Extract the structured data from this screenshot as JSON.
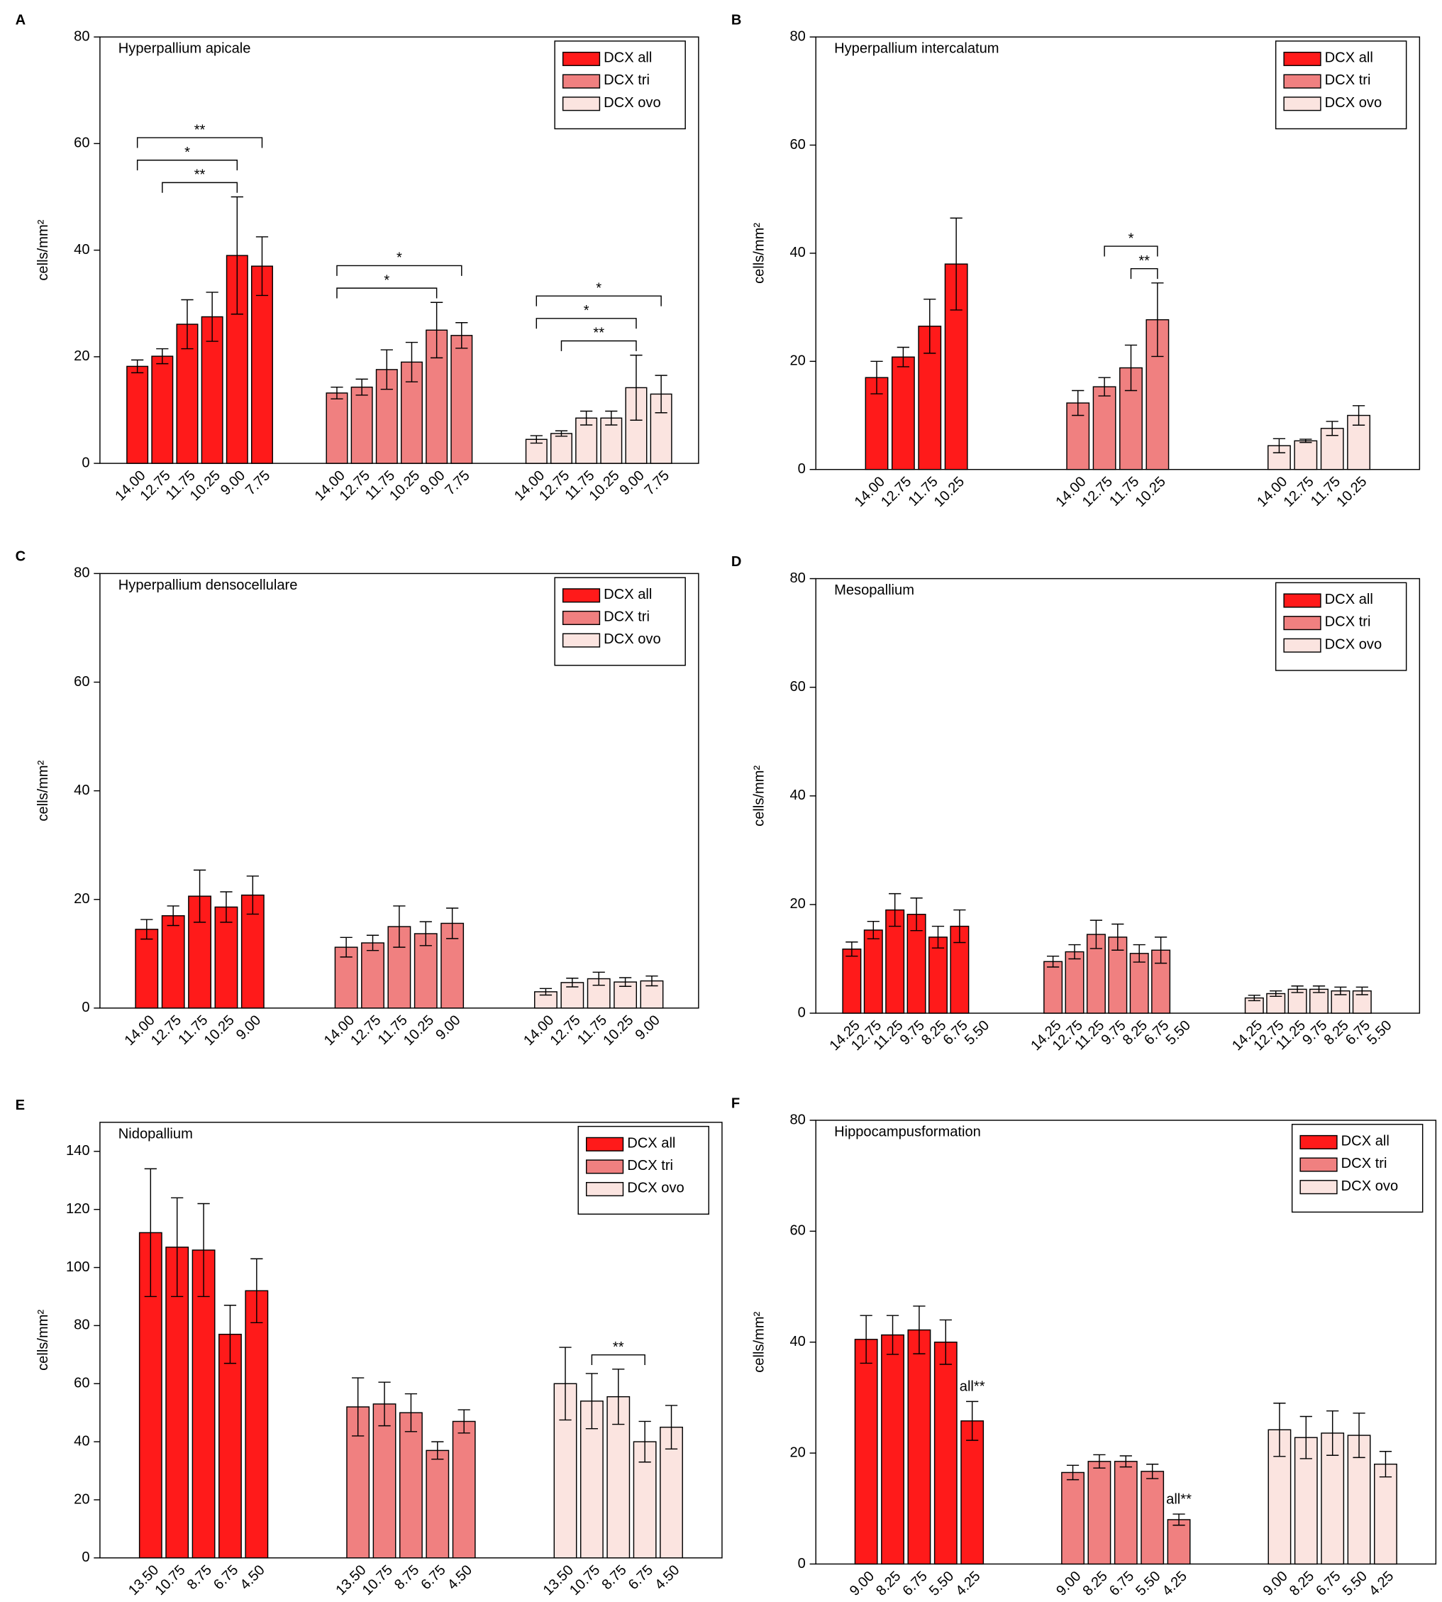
{
  "chart_data": [
    {
      "label": "A",
      "type": "bar",
      "title": "Hyperpallium apicale",
      "ylabel": "cells/mm²",
      "ylim": [
        0,
        80
      ],
      "yticks": [
        0,
        20,
        40,
        60,
        80
      ],
      "categories": [
        "14.00",
        "12.75",
        "11.75",
        "10.25",
        "9.00",
        "7.75"
      ],
      "series": [
        {
          "name": "DCX all",
          "color": "#ff1a1a",
          "values": [
            18.2,
            20.1,
            26.1,
            27.5,
            39,
            37
          ],
          "errors": [
            1.2,
            1.4,
            4.6,
            4.6,
            11,
            5.5
          ]
        },
        {
          "name": "DCX tri",
          "color": "#f08080",
          "values": [
            13.2,
            14.3,
            17.6,
            19,
            25,
            24
          ],
          "errors": [
            1.1,
            1.5,
            3.7,
            3.7,
            5.2,
            2.4
          ]
        },
        {
          "name": "DCX ovo",
          "color": "#fbe4e0",
          "values": [
            4.5,
            5.6,
            8.5,
            8.5,
            14.2,
            13
          ],
          "errors": [
            0.7,
            0.5,
            1.3,
            1.3,
            6.1,
            3.5
          ]
        }
      ],
      "brackets": [
        {
          "series": 0,
          "from": 1,
          "to": 4,
          "text": "**"
        },
        {
          "series": 0,
          "from": 0,
          "to": 4,
          "text": "*"
        },
        {
          "series": 0,
          "from": 0,
          "to": 5,
          "text": "**"
        },
        {
          "series": 1,
          "from": 0,
          "to": 4,
          "text": "*"
        },
        {
          "series": 1,
          "from": 0,
          "to": 5,
          "text": "*"
        },
        {
          "series": 2,
          "from": 1,
          "to": 4,
          "text": "**"
        },
        {
          "series": 2,
          "from": 0,
          "to": 4,
          "text": "*"
        },
        {
          "series": 2,
          "from": 0,
          "to": 5,
          "text": "*"
        }
      ]
    },
    {
      "label": "B",
      "type": "bar",
      "title": "Hyperpallium intercalatum",
      "ylabel": "cells/mm²",
      "ylim": [
        0,
        80
      ],
      "yticks": [
        0,
        20,
        40,
        60,
        80
      ],
      "categories": [
        "14.00",
        "12.75",
        "11.75",
        "10.25"
      ],
      "series": [
        {
          "name": "DCX all",
          "color": "#ff1a1a",
          "values": [
            17,
            20.8,
            26.5,
            38
          ],
          "errors": [
            3,
            1.8,
            5,
            8.5
          ]
        },
        {
          "name": "DCX tri",
          "color": "#f08080",
          "values": [
            12.3,
            15.3,
            18.8,
            27.7
          ],
          "errors": [
            2.3,
            1.7,
            4.2,
            6.8
          ]
        },
        {
          "name": "DCX ovo",
          "color": "#fbe4e0",
          "values": [
            4.4,
            5.3,
            7.6,
            10
          ],
          "errors": [
            1.3,
            0.3,
            1.3,
            1.8
          ]
        }
      ],
      "brackets": [
        {
          "series": 1,
          "from": 2,
          "to": 3,
          "text": "**"
        },
        {
          "series": 1,
          "from": 1,
          "to": 3,
          "text": "*"
        }
      ]
    },
    {
      "label": "C",
      "type": "bar",
      "title": "Hyperpallium densocellulare",
      "ylabel": "cells/mm²",
      "ylim": [
        0,
        80
      ],
      "yticks": [
        0,
        20,
        40,
        60,
        80
      ],
      "categories": [
        "14.00",
        "12.75",
        "11.75",
        "10.25",
        "9.00"
      ],
      "series": [
        {
          "name": "DCX all",
          "color": "#ff1a1a",
          "values": [
            14.5,
            17,
            20.6,
            18.6,
            20.8
          ],
          "errors": [
            1.8,
            1.8,
            4.8,
            2.8,
            3.5
          ]
        },
        {
          "name": "DCX tri",
          "color": "#f08080",
          "values": [
            11.2,
            12,
            15,
            13.7,
            15.6
          ],
          "errors": [
            1.8,
            1.4,
            3.8,
            2.2,
            2.8
          ]
        },
        {
          "name": "DCX ovo",
          "color": "#fbe4e0",
          "values": [
            3,
            4.7,
            5.4,
            4.8,
            5
          ],
          "errors": [
            0.6,
            0.8,
            1.2,
            0.8,
            0.9
          ]
        }
      ]
    },
    {
      "label": "D",
      "type": "bar",
      "title": "Mesopallium",
      "ylabel": "cells/mm²",
      "ylim": [
        0,
        80
      ],
      "yticks": [
        0,
        20,
        40,
        60,
        80
      ],
      "categories": [
        "14.25",
        "12.75",
        "11.25",
        "9.75",
        "8.25",
        "6.75",
        "5.50"
      ],
      "series": [
        {
          "name": "DCX all",
          "color": "#ff1a1a",
          "values": [
            11.8,
            15.3,
            19,
            18.2,
            14,
            16,
            null
          ],
          "errors": [
            1.3,
            1.6,
            3,
            3,
            2,
            3,
            null
          ]
        },
        {
          "name": "DCX tri",
          "color": "#f08080",
          "values": [
            9.5,
            11.3,
            14.5,
            14,
            11,
            11.6,
            null
          ],
          "errors": [
            1,
            1.3,
            2.6,
            2.4,
            1.6,
            2.4,
            null
          ]
        },
        {
          "name": "DCX ovo",
          "color": "#fbe4e0",
          "values": [
            2.8,
            3.6,
            4.4,
            4.4,
            4.1,
            4.1,
            null
          ],
          "errors": [
            0.5,
            0.5,
            0.6,
            0.6,
            0.7,
            0.7,
            null
          ]
        }
      ]
    },
    {
      "label": "E",
      "type": "bar",
      "title": "Nidopallium",
      "ylabel": "cells/mm²",
      "ylim": [
        0,
        150
      ],
      "yticks": [
        0,
        20,
        40,
        60,
        80,
        100,
        120,
        140
      ],
      "categories": [
        "13.50",
        "10.75",
        "8.75",
        "6.75",
        "4.50"
      ],
      "series": [
        {
          "name": "DCX all",
          "color": "#ff1a1a",
          "values": [
            112,
            107,
            106,
            77,
            92
          ],
          "errors": [
            22,
            17,
            16,
            10,
            11
          ]
        },
        {
          "name": "DCX tri",
          "color": "#f08080",
          "values": [
            52,
            53,
            50,
            37,
            47
          ],
          "errors": [
            10,
            7.5,
            6.5,
            3,
            4
          ]
        },
        {
          "name": "DCX ovo",
          "color": "#fbe4e0",
          "values": [
            60,
            54,
            55.5,
            40,
            45
          ],
          "errors": [
            12.5,
            9.5,
            9.5,
            7,
            7.5
          ]
        }
      ],
      "brackets": [
        {
          "series": 2,
          "from": 1,
          "to": 3,
          "text": "**"
        }
      ]
    },
    {
      "label": "F",
      "type": "bar",
      "title": "Hippocampusformation",
      "ylabel": "cells/mm²",
      "ylim": [
        0,
        80
      ],
      "yticks": [
        0,
        20,
        40,
        60,
        80
      ],
      "categories": [
        "9.00",
        "8.25",
        "6.75",
        "5.50",
        "4.25"
      ],
      "series": [
        {
          "name": "DCX all",
          "color": "#ff1a1a",
          "values": [
            40.5,
            41.3,
            42.2,
            40,
            25.8
          ],
          "errors": [
            4.3,
            3.5,
            4.3,
            4,
            3.5
          ]
        },
        {
          "name": "DCX tri",
          "color": "#f08080",
          "values": [
            16.5,
            18.5,
            18.5,
            16.7,
            8
          ],
          "errors": [
            1.3,
            1.2,
            1,
            1.3,
            1
          ]
        },
        {
          "name": "DCX ovo",
          "color": "#fbe4e0",
          "values": [
            24.2,
            22.8,
            23.6,
            23.2,
            18
          ],
          "errors": [
            4.8,
            3.8,
            4,
            4,
            2.3
          ]
        }
      ],
      "annotations": [
        {
          "series": 0,
          "index": 4,
          "text": "all**"
        },
        {
          "series": 1,
          "index": 4,
          "text": "all**"
        }
      ]
    }
  ]
}
